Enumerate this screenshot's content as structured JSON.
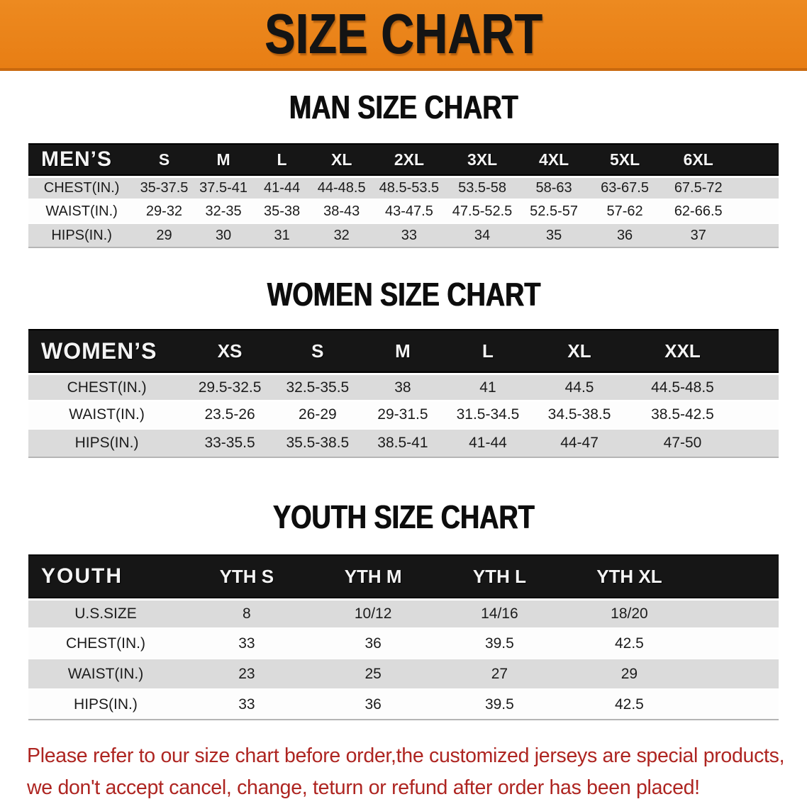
{
  "banner": {
    "title": "SIZE CHART",
    "bg_color": "#E8811B",
    "text_color": "#141414"
  },
  "sections": [
    {
      "title": "MAN SIZE CHART",
      "header_label": "MEN’S",
      "columns": [
        "S",
        "M",
        "L",
        "XL",
        "2XL",
        "3XL",
        "4XL",
        "5XL",
        "6XL"
      ],
      "rows": [
        {
          "label": "CHEST(IN.)",
          "values": [
            "35-37.5",
            "37.5-41",
            "41-44",
            "44-48.5",
            "48.5-53.5",
            "53.5-58",
            "58-63",
            "63-67.5",
            "67.5-72"
          ]
        },
        {
          "label": "WAIST(IN.)",
          "values": [
            "29-32",
            "32-35",
            "35-38",
            "38-43",
            "43-47.5",
            "47.5-52.5",
            "52.5-57",
            "57-62",
            "62-66.5"
          ]
        },
        {
          "label": "HIPS(IN.)",
          "values": [
            "29",
            "30",
            "31",
            "32",
            "33",
            "34",
            "35",
            "36",
            "37"
          ]
        }
      ]
    },
    {
      "title": "WOMEN SIZE CHART",
      "header_label": "WOMEN’S",
      "columns": [
        "XS",
        "S",
        "M",
        "L",
        "XL",
        "XXL"
      ],
      "rows": [
        {
          "label": "CHEST(IN.)",
          "values": [
            "29.5-32.5",
            "32.5-35.5",
            "38",
            "41",
            "44.5",
            "44.5-48.5"
          ]
        },
        {
          "label": "WAIST(IN.)",
          "values": [
            "23.5-26",
            "26-29",
            "29-31.5",
            "31.5-34.5",
            "34.5-38.5",
            "38.5-42.5"
          ]
        },
        {
          "label": "HIPS(IN.)",
          "values": [
            "33-35.5",
            "35.5-38.5",
            "38.5-41",
            "41-44",
            "44-47",
            "47-50"
          ]
        }
      ]
    },
    {
      "title": "YOUTH SIZE CHART",
      "header_label": "YOUTH",
      "columns": [
        "YTH S",
        "YTH M",
        "YTH L",
        "YTH XL"
      ],
      "rows": [
        {
          "label": "U.S.SIZE",
          "values": [
            "8",
            "10/12",
            "14/16",
            "18/20"
          ]
        },
        {
          "label": "CHEST(IN.)",
          "values": [
            "33",
            "36",
            "39.5",
            "42.5"
          ]
        },
        {
          "label": "WAIST(IN.)",
          "values": [
            "23",
            "25",
            "27",
            "29"
          ]
        },
        {
          "label": "HIPS(IN.)",
          "values": [
            "33",
            "36",
            "39.5",
            "42.5"
          ]
        }
      ]
    }
  ],
  "footer_note": {
    "line1": "Please refer to our size chart before order,the customized jerseys are special products,",
    "line2": "we don't accept cancel, change, teturn or refund after order has been placed!",
    "color": "#AE2521"
  },
  "colors": {
    "banner_orange": "#E8811B",
    "header_bar_black": "#161616",
    "row_gray": "#DBDBDB",
    "row_white": "#FDFDFD",
    "footer_red": "#AE2521"
  }
}
